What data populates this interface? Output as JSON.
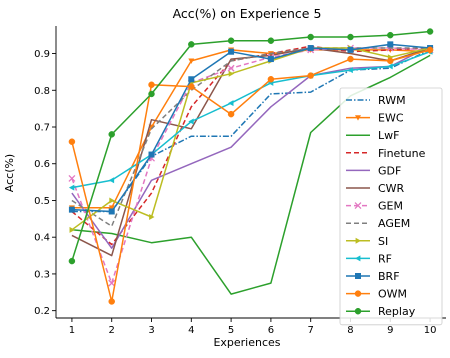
{
  "chart_data": {
    "type": "line",
    "title": "Acc(%) on Experience 5",
    "xlabel": "Experiences",
    "ylabel": "Acc(%)",
    "x": [
      1,
      2,
      3,
      4,
      5,
      6,
      7,
      8,
      9,
      10
    ],
    "xlim": [
      0.6,
      10.4
    ],
    "ylim": [
      0.18,
      0.975
    ],
    "yticks": [
      0.2,
      0.3,
      0.4,
      0.5,
      0.6,
      0.7,
      0.8,
      0.9
    ],
    "ytick_labels": [
      "0.2",
      "0.3",
      "0.4",
      "0.5",
      "0.6",
      "0.7",
      "0.8",
      "0.9"
    ],
    "xtick_labels": [
      "1",
      "2",
      "3",
      "4",
      "5",
      "6",
      "7",
      "8",
      "9",
      "10"
    ],
    "grid": false,
    "legend_position": "right",
    "series": [
      {
        "name": "RWM",
        "color": "#1f77b4",
        "dash": "dashdot",
        "marker": "none",
        "values": [
          0.47,
          0.47,
          0.62,
          0.675,
          0.675,
          0.79,
          0.795,
          0.855,
          0.86,
          0.91
        ]
      },
      {
        "name": "EWC",
        "color": "#ff7f0e",
        "dash": "solid",
        "marker": "triangle-down",
        "values": [
          0.48,
          0.48,
          0.7,
          0.88,
          0.91,
          0.9,
          0.91,
          0.91,
          0.91,
          0.905
        ]
      },
      {
        "name": "LwF",
        "color": "#2ca02c",
        "dash": "solid",
        "marker": "none",
        "values": [
          0.42,
          0.41,
          0.385,
          0.4,
          0.245,
          0.275,
          0.685,
          0.785,
          0.835,
          0.895
        ]
      },
      {
        "name": "Finetune",
        "color": "#d62728",
        "dash": "dashed",
        "marker": "none",
        "values": [
          0.47,
          0.38,
          0.52,
          0.755,
          0.88,
          0.9,
          0.92,
          0.905,
          0.91,
          0.915
        ]
      },
      {
        "name": "GDF",
        "color": "#9467bd",
        "dash": "solid",
        "marker": "none",
        "values": [
          0.52,
          0.37,
          0.555,
          0.6,
          0.645,
          0.755,
          0.84,
          0.86,
          0.865,
          0.92
        ]
      },
      {
        "name": "CWR",
        "color": "#8c564b",
        "dash": "solid",
        "marker": "none",
        "values": [
          0.405,
          0.35,
          0.72,
          0.695,
          0.885,
          0.895,
          0.915,
          0.9,
          0.88,
          0.915
        ]
      },
      {
        "name": "GEM",
        "color": "#e377c2",
        "dash": "dashed",
        "marker": "x",
        "values": [
          0.56,
          0.275,
          0.615,
          0.82,
          0.86,
          0.89,
          0.91,
          0.915,
          0.915,
          0.91
        ]
      },
      {
        "name": "AGEM",
        "color": "#7f7f7f",
        "dash": "dashed",
        "marker": "none",
        "values": [
          0.5,
          0.43,
          0.695,
          0.8,
          0.88,
          0.9,
          0.915,
          0.915,
          0.915,
          0.915
        ]
      },
      {
        "name": "SI",
        "color": "#bcbd22",
        "dash": "solid",
        "marker": "triangle-right",
        "values": [
          0.42,
          0.5,
          0.455,
          0.82,
          0.845,
          0.88,
          0.915,
          0.915,
          0.89,
          0.915
        ]
      },
      {
        "name": "RF",
        "color": "#17becf",
        "dash": "solid",
        "marker": "triangle-left",
        "values": [
          0.535,
          0.555,
          0.625,
          0.715,
          0.765,
          0.82,
          0.84,
          0.855,
          0.865,
          0.905
        ]
      },
      {
        "name": "BRF",
        "color": "#1f77b4",
        "dash": "solid",
        "marker": "square",
        "values": [
          0.475,
          0.47,
          0.625,
          0.83,
          0.905,
          0.885,
          0.915,
          0.91,
          0.925,
          0.915
        ]
      },
      {
        "name": "OWM",
        "color": "#ff7f0e",
        "dash": "solid",
        "marker": "circle",
        "values": [
          0.66,
          0.225,
          0.815,
          0.81,
          0.735,
          0.83,
          0.84,
          0.885,
          0.88,
          0.91
        ]
      },
      {
        "name": "Replay",
        "color": "#2ca02c",
        "dash": "solid",
        "marker": "circle",
        "values": [
          0.335,
          0.68,
          0.79,
          0.925,
          0.935,
          0.935,
          0.945,
          0.945,
          0.95,
          0.96
        ]
      }
    ]
  }
}
